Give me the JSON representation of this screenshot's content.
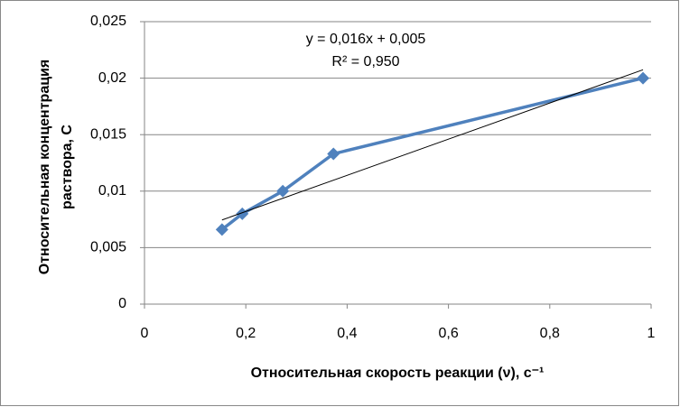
{
  "chart_data": {
    "type": "scatter",
    "xlabel": "Относительная скорость реакции (ν), с⁻¹",
    "ylabel": [
      "Относительная концентрация",
      "раствора, С"
    ],
    "series": [
      {
        "color": "#4f81bd",
        "x": [
          0.153,
          0.193,
          0.273,
          0.373,
          0.984
        ],
        "values": [
          0.0066,
          0.008,
          0.01,
          0.0133,
          0.02
        ]
      }
    ],
    "trendline": {
      "label": "y = 0,016x + 0,005",
      "r2_label": "R² = 0,950",
      "slope": 0.016,
      "intercept": 0.005,
      "color": "#000000"
    },
    "xlim": [
      0,
      1
    ],
    "xticks": [
      0,
      {
        "value": 0.2,
        "label": "0,2"
      },
      {
        "value": 0.4,
        "label": "0,4"
      },
      {
        "value": 0.6,
        "label": "0,6"
      },
      {
        "value": 0.8,
        "label": "0,8"
      },
      1
    ],
    "ylim": [
      0,
      0.025
    ],
    "yticks": [
      0,
      {
        "value": 0.005,
        "label": "0,005"
      },
      {
        "value": 0.01,
        "label": "0,01"
      },
      {
        "value": 0.015,
        "label": "0,015"
      },
      {
        "value": 0.02,
        "label": "0,02"
      },
      {
        "value": 0.025,
        "label": "0,025"
      }
    ],
    "grid": true
  }
}
